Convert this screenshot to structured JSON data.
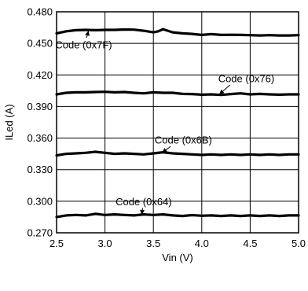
{
  "chart_data": {
    "type": "line",
    "title": "",
    "xlabel": "Vin (V)",
    "ylabel": "ILed (A)",
    "xlim": [
      2.5,
      5.0
    ],
    "ylim": [
      0.27,
      0.48
    ],
    "xticks": [
      "2.5",
      "3.0",
      "3.5",
      "4.0",
      "4.5",
      "5.0"
    ],
    "yticks": [
      "0.270",
      "0.300",
      "0.330",
      "0.360",
      "0.390",
      "0.420",
      "0.450",
      "0.480"
    ],
    "grid": true,
    "series": [
      {
        "name": "Code (0x7F)",
        "x": [
          2.5,
          2.6,
          2.7,
          2.8,
          2.9,
          3.0,
          3.1,
          3.2,
          3.3,
          3.4,
          3.5,
          3.55,
          3.6,
          3.7,
          3.8,
          3.9,
          4.0,
          4.1,
          4.2,
          4.3,
          4.4,
          4.5,
          4.6,
          4.7,
          4.8,
          4.9,
          5.0
        ],
        "y": [
          0.4595,
          0.4615,
          0.4625,
          0.4628,
          0.4625,
          0.4628,
          0.4628,
          0.4632,
          0.463,
          0.462,
          0.4605,
          0.4615,
          0.4635,
          0.4605,
          0.4595,
          0.459,
          0.458,
          0.4588,
          0.458,
          0.4582,
          0.458,
          0.4578,
          0.4575,
          0.4578,
          0.4575,
          0.4575,
          0.4578
        ]
      },
      {
        "name": "Code (0x76)",
        "x": [
          2.5,
          2.6,
          2.7,
          2.8,
          2.9,
          3.0,
          3.1,
          3.2,
          3.3,
          3.4,
          3.5,
          3.6,
          3.7,
          3.8,
          3.9,
          4.0,
          4.1,
          4.2,
          4.3,
          4.4,
          4.5,
          4.6,
          4.7,
          4.8,
          4.9,
          5.0
        ],
        "y": [
          0.4015,
          0.403,
          0.4035,
          0.4035,
          0.4038,
          0.404,
          0.4035,
          0.4038,
          0.403,
          0.4025,
          0.4035,
          0.403,
          0.403,
          0.402,
          0.4018,
          0.4012,
          0.4015,
          0.401,
          0.4018,
          0.4025,
          0.4015,
          0.402,
          0.4015,
          0.4012,
          0.4015,
          0.4015
        ]
      },
      {
        "name": "Code (0x6B)",
        "x": [
          2.5,
          2.6,
          2.7,
          2.8,
          2.9,
          3.0,
          3.1,
          3.2,
          3.3,
          3.4,
          3.5,
          3.6,
          3.7,
          3.8,
          3.9,
          4.0,
          4.1,
          4.2,
          4.3,
          4.4,
          4.5,
          4.6,
          4.7,
          4.8,
          4.9,
          5.0
        ],
        "y": [
          0.3435,
          0.345,
          0.3455,
          0.346,
          0.347,
          0.346,
          0.345,
          0.3455,
          0.345,
          0.3445,
          0.3455,
          0.3465,
          0.3455,
          0.345,
          0.3445,
          0.344,
          0.3445,
          0.344,
          0.3445,
          0.344,
          0.3445,
          0.344,
          0.3445,
          0.344,
          0.3445,
          0.3445
        ]
      },
      {
        "name": "Code (0x64)",
        "x": [
          2.5,
          2.6,
          2.7,
          2.8,
          2.9,
          3.0,
          3.1,
          3.2,
          3.3,
          3.4,
          3.5,
          3.6,
          3.7,
          3.8,
          3.9,
          4.0,
          4.1,
          4.2,
          4.3,
          4.4,
          4.5,
          4.6,
          4.7,
          4.8,
          4.9,
          5.0
        ],
        "y": [
          0.285,
          0.2865,
          0.287,
          0.2865,
          0.288,
          0.287,
          0.2875,
          0.287,
          0.2865,
          0.2875,
          0.287,
          0.2875,
          0.2865,
          0.286,
          0.2868,
          0.2862,
          0.2865,
          0.286,
          0.2865,
          0.286,
          0.2865,
          0.286,
          0.2865,
          0.286,
          0.2865,
          0.2865
        ]
      }
    ],
    "annotations": [
      {
        "text": "Code (0x7F)",
        "x": 2.78,
        "y": 0.4485,
        "arrow_to": [
          2.83,
          0.462
        ]
      },
      {
        "text": "Code (0x76)",
        "x": 4.46,
        "y": 0.4165,
        "arrow_to": [
          4.18,
          0.4015
        ]
      },
      {
        "text": "Code (0x6B)",
        "x": 3.81,
        "y": 0.358,
        "arrow_to": [
          3.59,
          0.3462
        ]
      },
      {
        "text": "Code (0x64)",
        "x": 3.4,
        "y": 0.2995,
        "arrow_to": [
          3.38,
          0.2872
        ]
      }
    ]
  }
}
